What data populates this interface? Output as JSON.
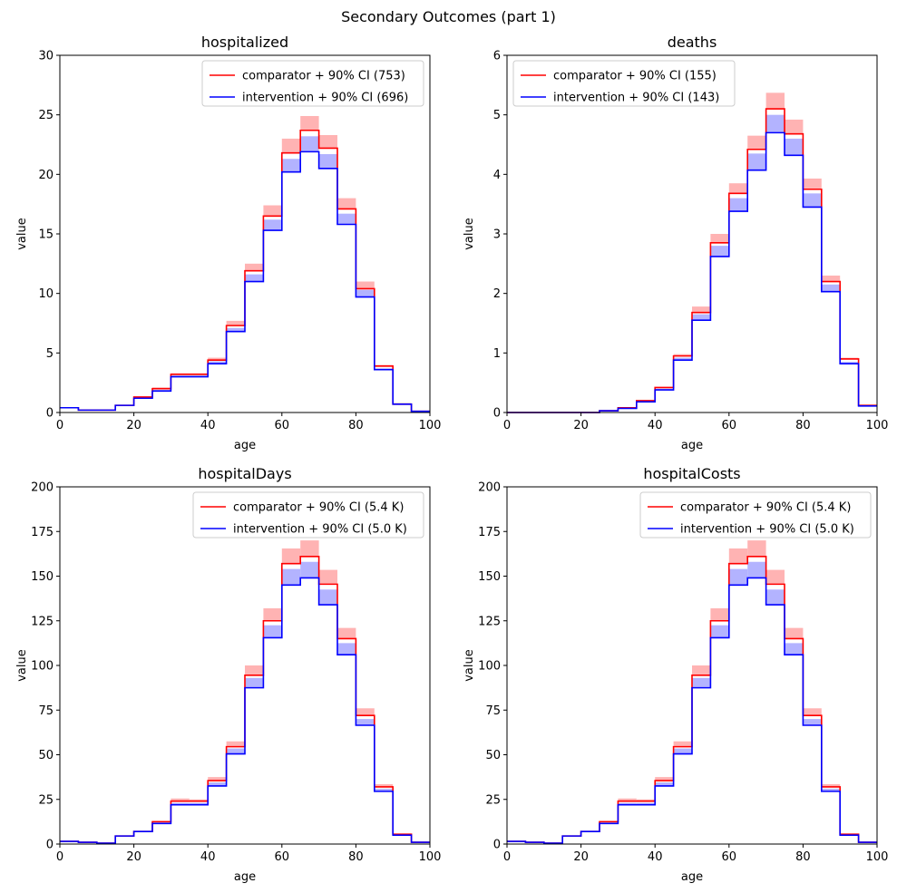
{
  "figure": {
    "title": "Secondary Outcomes (part 1)",
    "colors": {
      "comparator_line": "#ff0000",
      "comparator_band": "#ffb3b3",
      "intervention_line": "#0000ff",
      "intervention_band": "#b3b3ff"
    }
  },
  "chart_data": [
    {
      "type": "step",
      "title": "hospitalized",
      "xlabel": "age",
      "ylabel": "value",
      "xlim": [
        0,
        100
      ],
      "ylim": [
        0,
        30
      ],
      "xticks": [
        "0",
        "20",
        "40",
        "60",
        "80",
        "100"
      ],
      "yticks": [
        "0",
        "5",
        "10",
        "15",
        "20",
        "25",
        "30"
      ],
      "legend_position": "top-right",
      "bin_edges": [
        0,
        5,
        10,
        15,
        20,
        25,
        30,
        35,
        40,
        45,
        50,
        55,
        60,
        65,
        70,
        75,
        80,
        85,
        90,
        95,
        100
      ],
      "series": [
        {
          "name": "comparator + 90% CI (753)",
          "values": [
            0.4,
            0.2,
            0.2,
            0.6,
            1.3,
            2.0,
            3.2,
            3.2,
            4.4,
            7.3,
            11.9,
            16.5,
            21.8,
            23.7,
            22.2,
            17.1,
            10.4,
            3.9,
            0.7,
            0.1
          ],
          "ci_low": [
            0.4,
            0.2,
            0.2,
            0.6,
            1.3,
            2.0,
            3.2,
            3.2,
            4.4,
            7.3,
            11.9,
            16.5,
            21.8,
            23.7,
            22.2,
            17.1,
            10.4,
            3.9,
            0.7,
            0.1
          ],
          "ci_high": [
            0.4,
            0.2,
            0.2,
            0.6,
            1.3,
            2.1,
            3.3,
            3.3,
            4.6,
            7.7,
            12.5,
            17.4,
            23.0,
            24.9,
            23.3,
            18.0,
            11.0,
            4.0,
            0.8,
            0.1
          ]
        },
        {
          "name": "intervention + 90% CI (696)",
          "values": [
            0.4,
            0.2,
            0.2,
            0.6,
            1.2,
            1.8,
            3.0,
            3.0,
            4.1,
            6.8,
            11.0,
            15.3,
            20.2,
            21.9,
            20.5,
            15.8,
            9.7,
            3.6,
            0.7,
            0.1
          ],
          "ci_low": [
            0.4,
            0.2,
            0.2,
            0.6,
            1.2,
            1.8,
            3.0,
            3.0,
            4.1,
            6.8,
            11.0,
            15.3,
            20.2,
            21.9,
            20.5,
            15.8,
            9.7,
            3.6,
            0.7,
            0.1
          ],
          "ci_high": [
            0.4,
            0.2,
            0.2,
            0.6,
            1.2,
            1.9,
            3.1,
            3.1,
            4.3,
            7.1,
            11.6,
            16.2,
            21.3,
            23.2,
            21.7,
            16.7,
            10.3,
            3.7,
            0.7,
            0.1
          ]
        }
      ]
    },
    {
      "type": "step",
      "title": "deaths",
      "xlabel": "age",
      "ylabel": "value",
      "xlim": [
        0,
        100
      ],
      "ylim": [
        0,
        6
      ],
      "xticks": [
        "0",
        "20",
        "40",
        "60",
        "80",
        "100"
      ],
      "yticks": [
        "0",
        "1",
        "2",
        "3",
        "4",
        "5",
        "6"
      ],
      "legend_position": "top-left",
      "bin_edges": [
        0,
        5,
        10,
        15,
        20,
        25,
        30,
        35,
        40,
        45,
        50,
        55,
        60,
        65,
        70,
        75,
        80,
        85,
        90,
        95,
        100
      ],
      "series": [
        {
          "name": "comparator + 90% CI (155)",
          "values": [
            0.0,
            0.0,
            0.0,
            0.0,
            0.0,
            0.03,
            0.08,
            0.2,
            0.42,
            0.95,
            1.68,
            2.85,
            3.68,
            4.42,
            5.1,
            4.68,
            3.75,
            2.2,
            0.9,
            0.12
          ],
          "ci_low": [
            0.0,
            0.0,
            0.0,
            0.0,
            0.0,
            0.03,
            0.08,
            0.2,
            0.42,
            0.95,
            1.68,
            2.85,
            3.68,
            4.42,
            5.1,
            4.68,
            3.75,
            2.2,
            0.9,
            0.12
          ],
          "ci_high": [
            0.0,
            0.0,
            0.0,
            0.0,
            0.0,
            0.03,
            0.08,
            0.2,
            0.42,
            0.98,
            1.78,
            3.0,
            3.85,
            4.65,
            5.37,
            4.92,
            3.93,
            2.3,
            0.92,
            0.12
          ]
        },
        {
          "name": "intervention + 90% CI (143)",
          "values": [
            0.0,
            0.0,
            0.0,
            0.0,
            0.0,
            0.03,
            0.07,
            0.18,
            0.38,
            0.88,
            1.55,
            2.62,
            3.38,
            4.07,
            4.7,
            4.32,
            3.45,
            2.03,
            0.82,
            0.11
          ],
          "ci_low": [
            0.0,
            0.0,
            0.0,
            0.0,
            0.0,
            0.03,
            0.07,
            0.18,
            0.38,
            0.88,
            1.55,
            2.62,
            3.38,
            4.07,
            4.7,
            4.32,
            3.45,
            2.03,
            0.82,
            0.11
          ],
          "ci_high": [
            0.0,
            0.0,
            0.0,
            0.0,
            0.0,
            0.03,
            0.07,
            0.18,
            0.4,
            0.92,
            1.65,
            2.8,
            3.6,
            4.35,
            5.0,
            4.6,
            3.68,
            2.15,
            0.85,
            0.11
          ]
        }
      ]
    },
    {
      "type": "step",
      "title": "hospitalDays",
      "xlabel": "age",
      "ylabel": "value",
      "xlim": [
        0,
        100
      ],
      "ylim": [
        0,
        200
      ],
      "xticks": [
        "0",
        "20",
        "40",
        "60",
        "80",
        "100"
      ],
      "yticks": [
        "0",
        "25",
        "50",
        "75",
        "100",
        "125",
        "150",
        "175",
        "200"
      ],
      "legend_position": "top-right",
      "bin_edges": [
        0,
        5,
        10,
        15,
        20,
        25,
        30,
        35,
        40,
        45,
        50,
        55,
        60,
        65,
        70,
        75,
        80,
        85,
        90,
        95,
        100
      ],
      "series": [
        {
          "name": "comparator + 90% CI (5.4 K)",
          "values": [
            1.5,
            1.0,
            0.5,
            4.5,
            7.0,
            12.5,
            24.0,
            24.0,
            35.5,
            54.5,
            94.5,
            125.0,
            157.0,
            161.0,
            145.5,
            115.0,
            72.0,
            32.0,
            5.5,
            1.0
          ],
          "ci_low": [
            1.5,
            1.0,
            0.5,
            4.5,
            7.0,
            12.5,
            24.0,
            24.0,
            35.5,
            54.5,
            94.5,
            125.0,
            157.0,
            161.0,
            145.5,
            115.0,
            72.0,
            32.0,
            5.5,
            1.0
          ],
          "ci_high": [
            1.5,
            1.0,
            0.5,
            4.5,
            7.0,
            13.0,
            25.5,
            25.0,
            37.5,
            57.5,
            100.0,
            132.0,
            165.5,
            170.0,
            153.5,
            121.0,
            76.0,
            33.5,
            5.5,
            1.0
          ]
        },
        {
          "name": "intervention + 90% CI (5.0 K)",
          "values": [
            1.5,
            1.0,
            0.5,
            4.5,
            7.0,
            11.5,
            22.0,
            22.0,
            32.5,
            50.5,
            87.5,
            115.5,
            145.0,
            149.0,
            134.0,
            106.0,
            66.5,
            29.5,
            5.0,
            1.0
          ],
          "ci_low": [
            1.5,
            1.0,
            0.5,
            4.5,
            7.0,
            11.5,
            22.0,
            22.0,
            32.5,
            50.5,
            87.5,
            115.5,
            145.0,
            149.0,
            134.0,
            106.0,
            66.5,
            29.5,
            5.0,
            1.0
          ],
          "ci_high": [
            1.5,
            1.0,
            0.5,
            4.5,
            7.0,
            12.0,
            23.0,
            23.0,
            34.5,
            53.5,
            93.0,
            122.5,
            154.0,
            158.0,
            142.5,
            112.5,
            70.0,
            31.0,
            5.0,
            1.0
          ]
        }
      ]
    },
    {
      "type": "step",
      "title": "hospitalCosts",
      "xlabel": "age",
      "ylabel": "value",
      "xlim": [
        0,
        100
      ],
      "ylim": [
        0,
        200
      ],
      "xticks": [
        "0",
        "20",
        "40",
        "60",
        "80",
        "100"
      ],
      "yticks": [
        "0",
        "25",
        "50",
        "75",
        "100",
        "125",
        "150",
        "175",
        "200"
      ],
      "legend_position": "top-right",
      "bin_edges": [
        0,
        5,
        10,
        15,
        20,
        25,
        30,
        35,
        40,
        45,
        50,
        55,
        60,
        65,
        70,
        75,
        80,
        85,
        90,
        95,
        100
      ],
      "series": [
        {
          "name": "comparator + 90% CI (5.4 K)",
          "values": [
            1.5,
            1.0,
            0.5,
            4.5,
            7.0,
            12.5,
            24.0,
            24.0,
            35.5,
            54.5,
            94.5,
            125.0,
            157.0,
            161.0,
            145.5,
            115.0,
            72.0,
            32.0,
            5.5,
            1.0
          ],
          "ci_low": [
            1.5,
            1.0,
            0.5,
            4.5,
            7.0,
            12.5,
            24.0,
            24.0,
            35.5,
            54.5,
            94.5,
            125.0,
            157.0,
            161.0,
            145.5,
            115.0,
            72.0,
            32.0,
            5.5,
            1.0
          ],
          "ci_high": [
            1.5,
            1.0,
            0.5,
            4.5,
            7.0,
            13.0,
            25.5,
            25.0,
            37.5,
            57.5,
            100.0,
            132.0,
            165.5,
            170.0,
            153.5,
            121.0,
            76.0,
            33.5,
            5.5,
            1.0
          ]
        },
        {
          "name": "intervention + 90% CI (5.0 K)",
          "values": [
            1.5,
            1.0,
            0.5,
            4.5,
            7.0,
            11.5,
            22.0,
            22.0,
            32.5,
            50.5,
            87.5,
            115.5,
            145.0,
            149.0,
            134.0,
            106.0,
            66.5,
            29.5,
            5.0,
            1.0
          ],
          "ci_low": [
            1.5,
            1.0,
            0.5,
            4.5,
            7.0,
            11.5,
            22.0,
            22.0,
            32.5,
            50.5,
            87.5,
            115.5,
            145.0,
            149.0,
            134.0,
            106.0,
            66.5,
            29.5,
            5.0,
            1.0
          ],
          "ci_high": [
            1.5,
            1.0,
            0.5,
            4.5,
            7.0,
            12.0,
            23.0,
            23.0,
            34.5,
            53.5,
            93.0,
            122.5,
            154.0,
            158.0,
            142.5,
            112.5,
            70.0,
            31.0,
            5.0,
            1.0
          ]
        }
      ]
    }
  ]
}
